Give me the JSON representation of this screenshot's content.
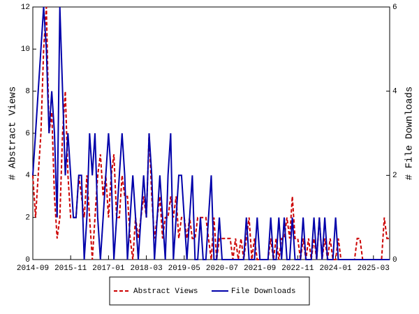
{
  "chart_data": {
    "type": "line",
    "y_label": "# Abstract Views",
    "y2_label": "# File Downloads",
    "x": [
      "2014-09",
      "2014-10",
      "2014-11",
      "2014-12",
      "2015-01",
      "2015-02",
      "2015-03",
      "2015-04",
      "2015-05",
      "2015-06",
      "2015-07",
      "2015-08",
      "2015-09",
      "2015-10",
      "2015-11",
      "2015-12",
      "2016-01",
      "2016-02",
      "2016-03",
      "2016-04",
      "2016-05",
      "2016-06",
      "2016-07",
      "2016-08",
      "2016-09",
      "2016-10",
      "2016-11",
      "2016-12",
      "2017-01",
      "2017-02",
      "2017-03",
      "2017-04",
      "2017-05",
      "2017-06",
      "2017-07",
      "2017-08",
      "2017-09",
      "2017-10",
      "2017-11",
      "2017-12",
      "2018-01",
      "2018-02",
      "2018-03",
      "2018-04",
      "2018-05",
      "2018-06",
      "2018-07",
      "2018-08",
      "2018-09",
      "2018-10",
      "2018-11",
      "2018-12",
      "2019-01",
      "2019-02",
      "2019-03",
      "2019-04",
      "2019-05",
      "2019-06",
      "2019-07",
      "2019-08",
      "2019-09",
      "2019-10",
      "2019-11",
      "2019-12",
      "2020-01",
      "2020-02",
      "2020-03",
      "2020-04",
      "2020-05",
      "2020-06",
      "2020-07",
      "2020-08",
      "2020-09",
      "2020-10",
      "2020-11",
      "2020-12",
      "2021-01",
      "2021-02",
      "2021-03",
      "2021-04",
      "2021-05",
      "2021-06",
      "2021-07",
      "2021-08",
      "2021-09",
      "2021-10",
      "2021-11",
      "2021-12",
      "2022-01",
      "2022-02",
      "2022-03",
      "2022-04",
      "2022-05",
      "2022-06",
      "2022-07",
      "2022-08",
      "2022-09",
      "2022-10",
      "2022-11",
      "2022-12",
      "2023-01",
      "2023-02",
      "2023-03",
      "2023-04",
      "2023-05",
      "2023-06",
      "2023-07",
      "2023-08",
      "2023-09",
      "2023-10",
      "2023-11",
      "2023-12",
      "2024-01",
      "2024-02",
      "2024-03",
      "2024-04",
      "2024-05",
      "2024-06",
      "2024-07",
      "2024-08",
      "2024-09",
      "2024-10",
      "2024-11",
      "2024-12",
      "2025-01",
      "2025-02",
      "2025-03",
      "2025-04",
      "2025-05",
      "2025-06",
      "2025-07",
      "2025-08",
      "2025-09"
    ],
    "series": [
      {
        "name": "Abstract Views",
        "color": "#cc0000",
        "dash": true,
        "values": [
          4,
          2,
          4,
          6,
          10,
          12,
          6,
          7,
          3,
          1,
          2,
          6,
          8,
          4,
          2,
          2,
          2,
          4,
          3,
          2,
          4,
          2,
          0,
          2,
          4,
          5,
          3,
          4,
          2,
          4,
          5,
          2,
          2,
          4,
          3,
          3,
          1,
          0,
          2,
          1,
          2,
          3,
          2,
          6,
          3,
          1,
          2,
          3,
          1,
          2,
          2,
          3,
          2,
          3,
          1,
          2,
          2,
          1,
          2,
          1,
          1,
          2,
          2,
          2,
          2,
          1,
          0,
          2,
          0,
          1,
          1,
          1,
          1,
          1,
          0,
          1,
          0,
          1,
          0,
          1,
          2,
          0,
          1,
          0,
          0,
          0,
          0,
          0,
          1,
          0,
          1,
          0,
          1,
          1,
          2,
          1,
          3,
          1,
          1,
          0,
          1,
          0,
          1,
          0,
          1,
          0,
          2,
          0,
          1,
          0,
          1,
          0,
          0,
          1,
          0,
          0,
          0,
          0,
          0,
          0,
          1,
          1,
          0,
          0,
          0,
          0,
          0,
          0,
          0,
          0,
          2,
          1,
          1
        ]
      },
      {
        "name": "File Downloads",
        "color": "#0000aa",
        "dash": false,
        "axis": "y2",
        "values": [
          2,
          3,
          4,
          5,
          6,
          5,
          3,
          4,
          3,
          1,
          6,
          4,
          2,
          3,
          2,
          1,
          1,
          2,
          2,
          0,
          1,
          3,
          2,
          3,
          1,
          0,
          1,
          2,
          3,
          2,
          0,
          1,
          2,
          3,
          2,
          0,
          1,
          2,
          1,
          0,
          1,
          2,
          1,
          3,
          2,
          0,
          1,
          2,
          1,
          0,
          2,
          3,
          0,
          1,
          2,
          2,
          1,
          0,
          1,
          2,
          0,
          0,
          1,
          0,
          0,
          1,
          2,
          0,
          0,
          1,
          0,
          0,
          0,
          0,
          0,
          0,
          0,
          0,
          0,
          1,
          0,
          0,
          0,
          1,
          0,
          0,
          0,
          0,
          1,
          0,
          0,
          1,
          0,
          1,
          0,
          0,
          1,
          0,
          0,
          0,
          1,
          0,
          0,
          0,
          1,
          0,
          1,
          0,
          1,
          0,
          0,
          0,
          1,
          0,
          0,
          0,
          0,
          0,
          0,
          0,
          0,
          0,
          0,
          0,
          0,
          0,
          0,
          0,
          0,
          0,
          0,
          0,
          0
        ]
      }
    ],
    "xlim": [
      "2014-09",
      "2025-09"
    ],
    "xticks": [
      "2014-09",
      "2015-11",
      "2017-01",
      "2018-03",
      "2019-05",
      "2020-07",
      "2021-09",
      "2022-11",
      "2024-01",
      "2025-03"
    ],
    "ylim": [
      0,
      12
    ],
    "yticks": [
      0,
      2,
      4,
      6,
      8,
      10,
      12
    ],
    "y2lim": [
      0,
      6
    ],
    "y2ticks": [
      0,
      2,
      4,
      6
    ],
    "legend": "bottom"
  }
}
